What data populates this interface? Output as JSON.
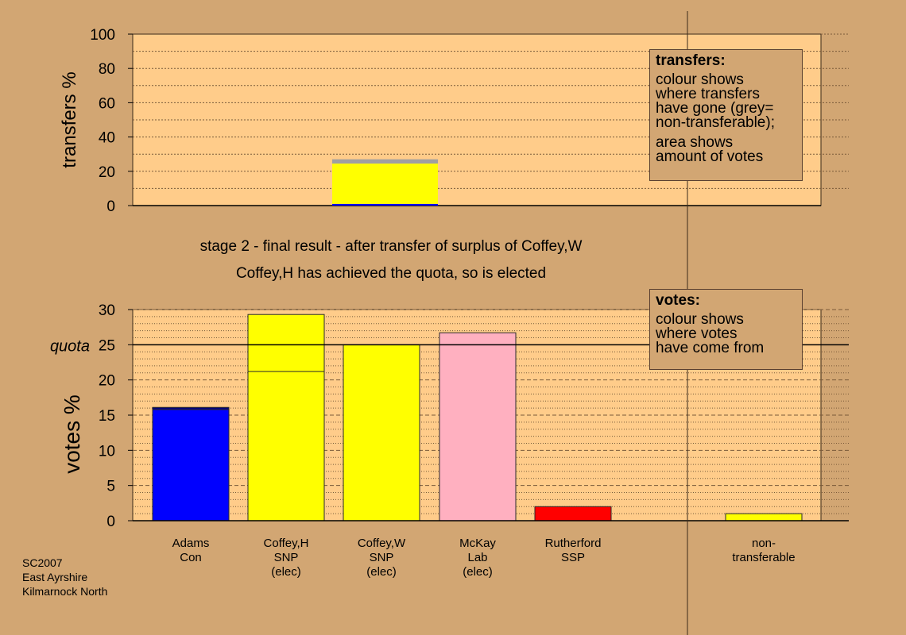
{
  "chart_data": [
    {
      "type": "bar",
      "panel": "transfers",
      "ylabel": "transfers %",
      "ylim": [
        0,
        100
      ],
      "yticks": [
        0,
        20,
        40,
        60,
        80,
        100
      ],
      "bars": [
        {
          "category_index": 2,
          "segments": [
            {
              "from": 0,
              "to": 1,
              "color": "#0000ff"
            },
            {
              "from": 1,
              "to": 24.5,
              "color": "#ffff00"
            },
            {
              "from": 24.5,
              "to": 27,
              "color": "#a0a0a0"
            }
          ]
        }
      ],
      "legend": {
        "title": "transfers:",
        "lines": [
          "colour shows",
          "where transfers",
          "have gone (grey=",
          "non-transferable);",
          "",
          "area shows",
          "amount of votes"
        ]
      }
    },
    {
      "type": "bar",
      "panel": "votes",
      "ylabel": "votes %",
      "ylim": [
        0,
        30
      ],
      "yticks": [
        0,
        5,
        10,
        15,
        20,
        25,
        30
      ],
      "quota": {
        "value": 25,
        "label": "quota"
      },
      "categories": [
        [
          "Adams",
          "Con"
        ],
        [
          "Coffey,H",
          "SNP",
          "(elec)"
        ],
        [
          "Coffey,W",
          "SNP",
          "(elec)"
        ],
        [
          "McKay",
          "Lab",
          "(elec)"
        ],
        [
          "Rutherford",
          "SSP"
        ],
        [],
        [
          "non-",
          "transferable"
        ]
      ],
      "bars": [
        {
          "category_index": 0,
          "segments": [
            {
              "from": 0,
              "to": 15.8,
              "color": "#0000ff"
            },
            {
              "from": 15.8,
              "to": 16.1,
              "color": "#000080"
            }
          ]
        },
        {
          "category_index": 1,
          "segments": [
            {
              "from": 0,
              "to": 21.2,
              "color": "#ffff00"
            },
            {
              "from": 21.2,
              "to": 29.3,
              "color": "#ffff00"
            }
          ]
        },
        {
          "category_index": 2,
          "segments": [
            {
              "from": 0,
              "to": 25,
              "color": "#ffff00"
            }
          ]
        },
        {
          "category_index": 3,
          "segments": [
            {
              "from": 0,
              "to": 26.7,
              "color": "#ffb0c0"
            }
          ]
        },
        {
          "category_index": 4,
          "segments": [
            {
              "from": 0,
              "to": 2.0,
              "color": "#ff0000"
            }
          ]
        },
        {
          "category_index": 6,
          "segments": [
            {
              "from": 0,
              "to": 1.0,
              "color": "#ffff00"
            }
          ]
        }
      ],
      "legend": {
        "title": "votes:",
        "lines": [
          "colour shows",
          "where votes",
          "have come from"
        ]
      }
    }
  ],
  "captions": {
    "line1": "stage 2 - final result - after transfer of surplus of Coffey,W",
    "line2": "Coffey,H has achieved the quota, so is elected"
  },
  "footer": {
    "line1": "SC2007",
    "line2": "East Ayrshire",
    "line3": "Kilmarnock North"
  },
  "colors": {
    "background": "#d2a673",
    "plot_area": "#ffcc8a",
    "axis": "#000000",
    "grid": "#7a5a3a"
  }
}
